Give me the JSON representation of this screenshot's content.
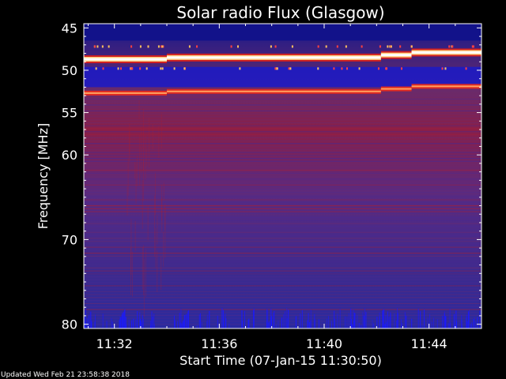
{
  "chart_data": {
    "type": "heatmap",
    "title": "Solar radio Flux (Glasgow)",
    "xlabel": "Start Time (07-Jan-15 11:30:50)",
    "ylabel": "Frequency [MHz]",
    "x_unit": "time",
    "y_scale": "linear-inverted",
    "xlim": [
      "11:30:50",
      "11:46:00"
    ],
    "ylim": [
      44.5,
      80.5
    ],
    "x_ticks": [
      {
        "label": "11:32",
        "minutes": 1.1667
      },
      {
        "label": "11:36",
        "minutes": 5.1667
      },
      {
        "label": "11:40",
        "minutes": 9.1667
      },
      {
        "label": "11:44",
        "minutes": 13.1667
      }
    ],
    "y_ticks": [
      "45",
      "50",
      "55",
      "60",
      "70",
      "80"
    ],
    "y_tick_values": [
      45,
      50,
      55,
      60,
      70,
      80
    ],
    "strong_emission_lines": [
      {
        "start_time": "11:30:50",
        "end_time": "11:34:00",
        "frequency": 48.7,
        "intensity": "very high"
      },
      {
        "start_time": "11:34:00",
        "end_time": "11:42:10",
        "frequency": 48.5,
        "intensity": "very high"
      },
      {
        "start_time": "11:42:10",
        "end_time": "11:43:20",
        "frequency": 48.2,
        "intensity": "very high"
      },
      {
        "start_time": "11:43:20",
        "end_time": "11:46:00",
        "frequency": 47.9,
        "intensity": "very high"
      },
      {
        "start_time": "11:30:50",
        "end_time": "11:34:00",
        "frequency": 52.7,
        "intensity": "high"
      },
      {
        "start_time": "11:34:00",
        "end_time": "11:42:10",
        "frequency": 52.5,
        "intensity": "high"
      },
      {
        "start_time": "11:42:10",
        "end_time": "11:43:20",
        "frequency": 52.2,
        "intensity": "high"
      },
      {
        "start_time": "11:43:20",
        "end_time": "11:46:00",
        "frequency": 51.9,
        "intensity": "high"
      }
    ],
    "colors": {
      "background_low": "#3a2a8c",
      "mid": "#7a1f55",
      "high": "#d02020",
      "very_high": "#ffffff",
      "low_band": "#1010d0",
      "frame": "#ffffff"
    },
    "grid": false,
    "legend": "none"
  },
  "footer": {
    "updated": "Updated Wed Feb 21 23:58:38 2018"
  }
}
